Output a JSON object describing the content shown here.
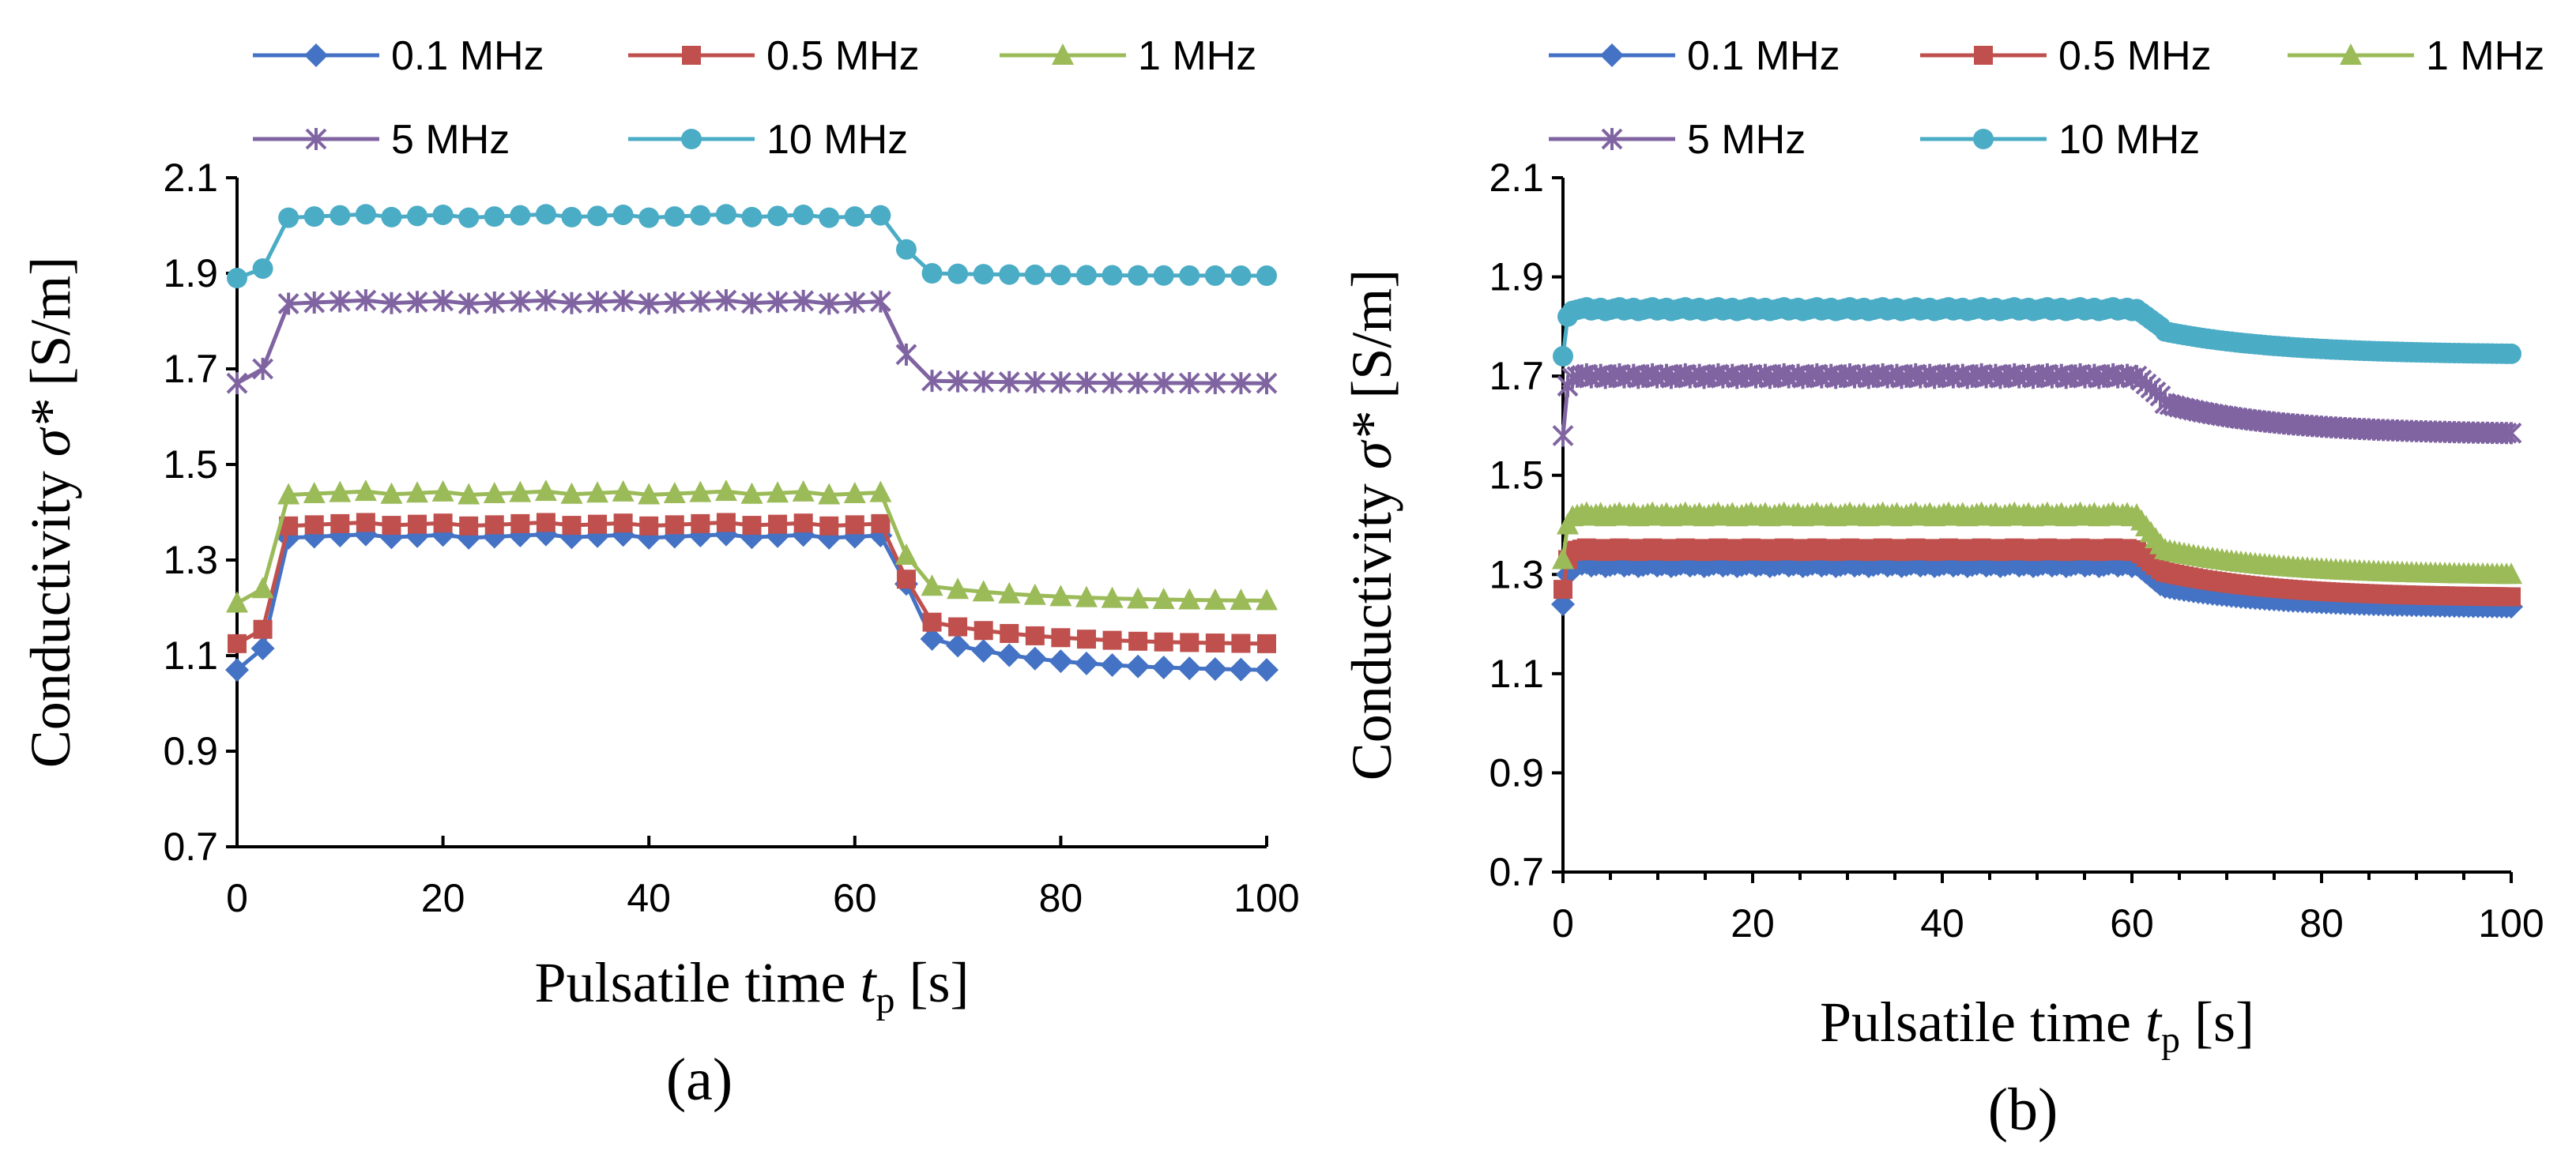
{
  "chart_data": [
    {
      "panel": "(a)",
      "type": "line",
      "xlabel_main": "Pulsatile time ",
      "xlabel_var": "t",
      "xlabel_sub": "p",
      "xlabel_unit": " [s]",
      "ylabel_main": "Conductivity ",
      "ylabel_var": "σ*",
      "ylabel_unit": " [S/m]",
      "xlim": [
        0,
        100
      ],
      "ylim": [
        0.7,
        2.1
      ],
      "xticks": [
        "0",
        "20",
        "40",
        "60",
        "80",
        "100"
      ],
      "yticks": [
        "0.7",
        "0.9",
        "1.1",
        "1.3",
        "1.5",
        "1.7",
        "1.9",
        "2.1"
      ],
      "segments": [
        {
          "x0": 0,
          "x1": 2.5,
          "n": 2
        },
        {
          "x0": 5,
          "x1": 62.5,
          "n": 24
        },
        {
          "x0": 65,
          "x1": 65,
          "n": 1
        },
        {
          "x0": 67.5,
          "x1": 100,
          "n": 14
        }
      ],
      "series": [
        {
          "name": "0.1 MHz",
          "color": "#4472C4",
          "marker": "diamond",
          "levels": {
            "start": 1.07,
            "rise": 1.115,
            "high": 1.35,
            "drop": 1.25,
            "low_start": 1.135,
            "low_end": 1.07
          }
        },
        {
          "name": "0.5 MHz",
          "color": "#C0504D",
          "marker": "square",
          "levels": {
            "start": 1.125,
            "rise": 1.155,
            "high": 1.375,
            "drop": 1.26,
            "low_start": 1.17,
            "low_end": 1.125
          }
        },
        {
          "name": "1 MHz",
          "color": "#9BBB59",
          "marker": "triangle",
          "levels": {
            "start": 1.21,
            "rise": 1.24,
            "high": 1.44,
            "drop": 1.31,
            "low_start": 1.245,
            "low_end": 1.215
          }
        },
        {
          "name": "5 MHz",
          "color": "#8064A2",
          "marker": "star",
          "levels": {
            "start": 1.67,
            "rise": 1.7,
            "high": 1.84,
            "drop": 1.73,
            "low_start": 1.675,
            "low_end": 1.67
          }
        },
        {
          "name": "10 MHz",
          "color": "#4BACC6",
          "marker": "circle",
          "levels": {
            "start": 1.89,
            "rise": 1.91,
            "high": 2.02,
            "drop": 1.95,
            "low_start": 1.9,
            "low_end": 1.895
          }
        }
      ]
    },
    {
      "panel": "(b)",
      "type": "line",
      "xlabel_main": "Pulsatile time ",
      "xlabel_var": "t",
      "xlabel_sub": "p",
      "xlabel_unit": " [s]",
      "ylabel_main": "Conductivity ",
      "ylabel_var": "σ*",
      "ylabel_unit": " [S/m]",
      "xlim": [
        0,
        100
      ],
      "ylim": [
        0.7,
        2.1
      ],
      "xticks": [
        "0",
        "20",
        "40",
        "60",
        "80",
        "100"
      ],
      "yticks": [
        "0.7",
        "0.9",
        "1.1",
        "1.3",
        "1.5",
        "1.7",
        "1.9",
        "2.1"
      ],
      "segments": [
        {
          "x0": 0,
          "x1": 0.5,
          "n": 2
        },
        {
          "x0": 1,
          "x1": 60,
          "n": 120
        },
        {
          "x0": 60.5,
          "x1": 63,
          "n": 6
        },
        {
          "x0": 63.5,
          "x1": 100,
          "n": 74
        }
      ],
      "series": [
        {
          "name": "0.1 MHz",
          "color": "#4472C4",
          "marker": "diamond",
          "levels": {
            "start": 1.24,
            "rise": 1.3,
            "high": 1.32,
            "drop": 1.28,
            "low_start": 1.275,
            "low_end": 1.235
          }
        },
        {
          "name": "0.5 MHz",
          "color": "#C0504D",
          "marker": "square",
          "levels": {
            "start": 1.27,
            "rise": 1.33,
            "high": 1.35,
            "drop": 1.31,
            "low_start": 1.305,
            "low_end": 1.255
          }
        },
        {
          "name": "1 MHz",
          "color": "#9BBB59",
          "marker": "triangle",
          "levels": {
            "start": 1.33,
            "rise": 1.4,
            "high": 1.42,
            "drop": 1.36,
            "low_start": 1.35,
            "low_end": 1.3
          }
        },
        {
          "name": "5 MHz",
          "color": "#8064A2",
          "marker": "star",
          "levels": {
            "start": 1.58,
            "rise": 1.68,
            "high": 1.7,
            "drop": 1.66,
            "low_start": 1.645,
            "low_end": 1.585
          }
        },
        {
          "name": "10 MHz",
          "color": "#4BACC6",
          "marker": "circle",
          "levels": {
            "start": 1.74,
            "rise": 1.82,
            "high": 1.835,
            "drop": 1.8,
            "low_start": 1.79,
            "low_end": 1.745
          }
        }
      ]
    }
  ]
}
